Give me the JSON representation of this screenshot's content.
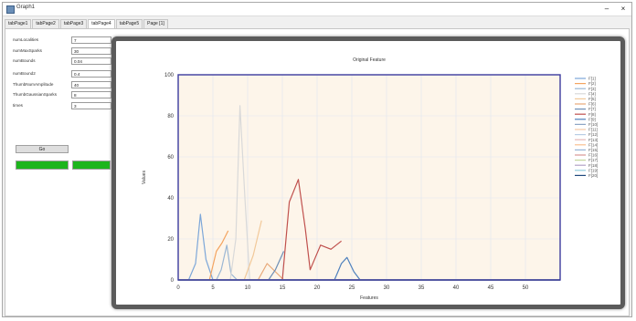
{
  "window": {
    "title": "Graph1",
    "minimize_glyph": "–",
    "close_glyph": "×"
  },
  "tabs": [
    {
      "label": "tabPage1",
      "active": false
    },
    {
      "label": "tabPage2",
      "active": false
    },
    {
      "label": "tabPage3",
      "active": false
    },
    {
      "label": "tabPage4",
      "active": true
    },
    {
      "label": "tabPage5",
      "active": false
    },
    {
      "label": "Page [1]",
      "active": false
    }
  ],
  "params": [
    {
      "label": "numLocalities",
      "value": "7"
    },
    {
      "label": "numMaxSparks",
      "value": "30"
    },
    {
      "label": "numBounds",
      "value": "0.04"
    },
    {
      "label": "numBound2",
      "value": "0.4"
    },
    {
      "label": "ThumbNumAmplitude",
      "value": "40"
    },
    {
      "label": "ThumbGaussianSparks",
      "value": "8"
    },
    {
      "label": "times",
      "value": "3"
    }
  ],
  "controls": {
    "go_label": "Go"
  },
  "progress_bars": [
    {
      "fill": 1.0,
      "color": "#1db51d"
    },
    {
      "fill": 1.0,
      "color": "#1db51d"
    }
  ],
  "chart_data": {
    "type": "line",
    "title": "Original Feature",
    "xlabel": "Features",
    "ylabel": "Values",
    "xlim": [
      0,
      55
    ],
    "ylim": [
      0,
      100
    ],
    "x_ticks": [
      0,
      5,
      10,
      15,
      20,
      25,
      30,
      35,
      40,
      45,
      50
    ],
    "y_ticks": [
      0,
      20,
      40,
      60,
      80,
      100
    ],
    "grid": true,
    "legend_position": "right",
    "background": "#fdf5ea",
    "axis_color": "#3b3b9e",
    "series": [
      {
        "name": "F[1]",
        "color": "#7da7d9",
        "points": [
          [
            1.5,
            0
          ],
          [
            2.5,
            8
          ],
          [
            3.2,
            32
          ],
          [
            4,
            10
          ],
          [
            5,
            0
          ]
        ]
      },
      {
        "name": "F[2]",
        "color": "#f4a460",
        "points": [
          [
            4.5,
            0
          ],
          [
            5.5,
            14
          ],
          [
            6.3,
            18
          ],
          [
            7.2,
            24
          ]
        ]
      },
      {
        "name": "F[3]",
        "color": "#9bb7d4",
        "points": [
          [
            5.5,
            0
          ],
          [
            6.2,
            5
          ],
          [
            7,
            17
          ],
          [
            7.6,
            3
          ],
          [
            8.5,
            0
          ]
        ]
      },
      {
        "name": "F[4]",
        "color": "#d9d9d9",
        "points": [
          [
            7.5,
            0
          ],
          [
            8.3,
            20
          ],
          [
            8.9,
            85
          ],
          [
            9.6,
            40
          ],
          [
            10.3,
            0
          ]
        ]
      },
      {
        "name": "F[5]",
        "color": "#f2c99a",
        "points": [
          [
            9.5,
            0
          ],
          [
            10.8,
            12
          ],
          [
            12,
            29
          ]
        ]
      },
      {
        "name": "F[6]",
        "color": "#e8a878",
        "points": [
          [
            11.5,
            0
          ],
          [
            12.8,
            8
          ],
          [
            14,
            4
          ],
          [
            15.2,
            0
          ]
        ]
      },
      {
        "name": "F[7]",
        "color": "#6d8eb5",
        "points": [
          [
            13,
            0
          ],
          [
            14,
            5
          ],
          [
            15.2,
            14
          ]
        ]
      },
      {
        "name": "F[8]",
        "color": "#c0504d",
        "points": [
          [
            15,
            0
          ],
          [
            16,
            38
          ],
          [
            17.3,
            49
          ],
          [
            18.3,
            25
          ],
          [
            19,
            5
          ],
          [
            20.5,
            17
          ],
          [
            22,
            15
          ],
          [
            23.5,
            19
          ]
        ]
      },
      {
        "name": "F[9]",
        "color": "#4f81bd",
        "points": [
          [
            22.5,
            0
          ],
          [
            23.5,
            8
          ],
          [
            24.3,
            11
          ],
          [
            25.3,
            4
          ],
          [
            26.2,
            0
          ]
        ]
      },
      {
        "name": "F[10]",
        "color": "#8da5c4",
        "points": [
          [
            0,
            0
          ],
          [
            55,
            0
          ]
        ]
      },
      {
        "name": "F[11]",
        "color": "#f6c8a3",
        "points": [
          [
            0,
            0
          ],
          [
            55,
            0
          ]
        ]
      },
      {
        "name": "F[12]",
        "color": "#b9cde5",
        "points": [
          [
            0,
            0
          ],
          [
            55,
            0
          ]
        ]
      },
      {
        "name": "F[13]",
        "color": "#e6b9b8",
        "points": [
          [
            0,
            0
          ],
          [
            55,
            0
          ]
        ]
      },
      {
        "name": "F[14]",
        "color": "#fac090",
        "points": [
          [
            0,
            0
          ],
          [
            55,
            0
          ]
        ]
      },
      {
        "name": "F[15]",
        "color": "#95b3d7",
        "points": [
          [
            0,
            0
          ],
          [
            55,
            0
          ]
        ]
      },
      {
        "name": "F[16]",
        "color": "#d99694",
        "points": [
          [
            0,
            0
          ],
          [
            55,
            0
          ]
        ]
      },
      {
        "name": "F[17]",
        "color": "#c3d69b",
        "points": [
          [
            0,
            0
          ],
          [
            55,
            0
          ]
        ]
      },
      {
        "name": "F[18]",
        "color": "#b2a2c7",
        "points": [
          [
            0,
            0
          ],
          [
            55,
            0
          ]
        ]
      },
      {
        "name": "F[19]",
        "color": "#93cddd",
        "points": [
          [
            0,
            0
          ],
          [
            55,
            0
          ]
        ]
      },
      {
        "name": "F[20]",
        "color": "#1f497d",
        "points": [
          [
            0,
            0
          ],
          [
            55,
            0
          ]
        ]
      }
    ]
  }
}
